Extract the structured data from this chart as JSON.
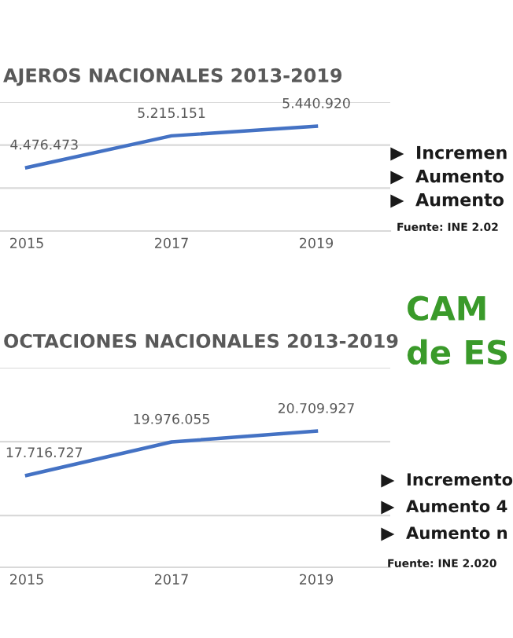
{
  "chart_data": [
    {
      "type": "line",
      "title": "AJEROS NACIONALES 2013-2019",
      "categories": [
        "2015",
        "2017",
        "2019"
      ],
      "series": [
        {
          "color": "#4472c4",
          "values": [
            4476473,
            5215151,
            5440920
          ],
          "value_labels": [
            "4.476.473",
            "5.215.151",
            "5.440.920"
          ]
        }
      ],
      "ylim": [
        3000000,
        6000000
      ],
      "yticks": [
        {
          "value": 3000000,
          "label": null
        },
        {
          "value": 4000000,
          "label": null
        },
        {
          "value": 5000000,
          "label": null
        },
        {
          "value": 6000000,
          "label": null
        }
      ],
      "tick_labels": "x",
      "grid": "y",
      "marker": "none",
      "line_style": "solid"
    },
    {
      "type": "other",
      "annotations": [
        "Incremen",
        "Aumento",
        "Aumento",
        "Fuente: INE 2.02"
      ]
    },
    {
      "type": "other",
      "annotations": [
        "CAM",
        "de ES"
      ]
    },
    {
      "type": "line",
      "title": "OCTACIONES NACIONALES 2013-2019",
      "categories": [
        "2015",
        "2017",
        "2019"
      ],
      "series": [
        {
          "color": "#4472c4",
          "values": [
            17716727,
            19976055,
            20709927
          ],
          "value_labels": [
            "17.716.727",
            "19.976.055",
            "20.709.927"
          ]
        }
      ],
      "ylim": [
        11500000,
        25000000
      ],
      "yticks": [
        {
          "value": 15000000,
          "label": null
        },
        {
          "value": 20000000,
          "label": null
        },
        {
          "value": 25000000,
          "label": null
        }
      ],
      "tick_labels": "x",
      "grid": "y",
      "marker": "none",
      "line_style": "solid"
    },
    {
      "type": "other",
      "annotations": [
        "Incremento",
        "Aumento 4",
        "Aumento n",
        "Fuente: INE 2.020"
      ]
    }
  ]
}
